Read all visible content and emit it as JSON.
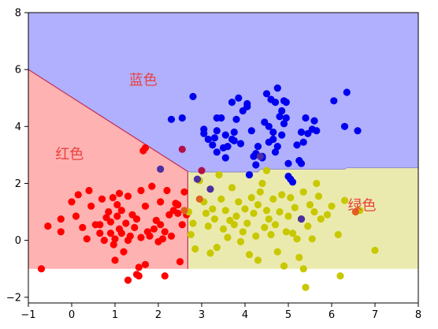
{
  "chart_data": {
    "type": "scatter",
    "title": "",
    "xlabel": "",
    "ylabel": "",
    "xlim": [
      -1,
      8
    ],
    "ylim": [
      -2.2,
      8
    ],
    "x_ticks": [
      -1,
      0,
      1,
      2,
      3,
      4,
      5,
      6,
      7,
      8
    ],
    "y_ticks": [
      -2,
      0,
      2,
      4,
      6,
      8
    ],
    "grid": false,
    "legend": "none",
    "regions": [
      {
        "name": "blue-region",
        "color": "#b0b0ff",
        "polygon": [
          [
            -1,
            8
          ],
          [
            8,
            8
          ],
          [
            8,
            2.55
          ],
          [
            6.35,
            2.55
          ],
          [
            6.3,
            2.5
          ],
          [
            4.35,
            2.5
          ],
          [
            4.3,
            2.4
          ],
          [
            2.75,
            2.4
          ],
          [
            2.68,
            2.42
          ],
          [
            -1,
            6
          ]
        ]
      },
      {
        "name": "red-region",
        "color": "#ffb2b2",
        "polygon": [
          [
            -1,
            6
          ],
          [
            2.68,
            2.42
          ],
          [
            2.68,
            -1
          ],
          [
            -1,
            -1
          ]
        ]
      },
      {
        "name": "green-region",
        "color": "#ebeaae",
        "polygon": [
          [
            2.68,
            2.42
          ],
          [
            2.75,
            2.4
          ],
          [
            4.3,
            2.4
          ],
          [
            4.35,
            2.5
          ],
          [
            6.3,
            2.5
          ],
          [
            6.35,
            2.55
          ],
          [
            8,
            2.55
          ],
          [
            8,
            -1
          ],
          [
            2.68,
            -1
          ]
        ]
      }
    ],
    "region_labels": [
      {
        "text": "蓝色",
        "x": 1.65,
        "y": 5.6
      },
      {
        "text": "红色",
        "x": -0.05,
        "y": 3.0
      },
      {
        "text": "绿色",
        "x": 6.7,
        "y": 1.2
      }
    ],
    "series": [
      {
        "name": "",
        "color": "#ff0000",
        "points": [
          [
            -0.7,
            -1.0
          ],
          [
            -0.55,
            0.5
          ],
          [
            -0.25,
            0.75
          ],
          [
            -0.25,
            0.3
          ],
          [
            0.0,
            1.35
          ],
          [
            0.1,
            0.85
          ],
          [
            0.15,
            1.6
          ],
          [
            0.25,
            0.45
          ],
          [
            0.35,
            0.05
          ],
          [
            0.4,
            1.75
          ],
          [
            0.45,
            1.2
          ],
          [
            0.55,
            0.55
          ],
          [
            0.65,
            0.25
          ],
          [
            0.7,
            1.45
          ],
          [
            0.75,
            0.0
          ],
          [
            0.8,
            0.8
          ],
          [
            0.85,
            1.0
          ],
          [
            0.9,
            0.25
          ],
          [
            0.9,
            0.65
          ],
          [
            0.95,
            1.5
          ],
          [
            0.97,
            -0.15
          ],
          [
            1.0,
            0.05
          ],
          [
            1.05,
            1.25
          ],
          [
            1.05,
            0.85
          ],
          [
            1.1,
            1.65
          ],
          [
            1.1,
            0.4
          ],
          [
            1.15,
            1.05
          ],
          [
            1.15,
            0.25
          ],
          [
            1.2,
            -0.4
          ],
          [
            1.25,
            0.6
          ],
          [
            1.3,
            1.55
          ],
          [
            1.3,
            0.0
          ],
          [
            1.35,
            0.15
          ],
          [
            1.4,
            0.9
          ],
          [
            1.45,
            0.45
          ],
          [
            1.5,
            0.75
          ],
          [
            1.5,
            -1.2
          ],
          [
            1.55,
            -1.25
          ],
          [
            1.6,
            1.75
          ],
          [
            1.6,
            0.1
          ],
          [
            1.65,
            3.15
          ],
          [
            1.7,
            3.25
          ],
          [
            1.7,
            1.2
          ],
          [
            1.75,
            0.3
          ],
          [
            1.8,
            0.15
          ],
          [
            1.85,
            1.9
          ],
          [
            1.9,
            0.4
          ],
          [
            1.95,
            0.7
          ],
          [
            2.0,
            -0.05
          ],
          [
            2.05,
            1.35
          ],
          [
            2.1,
            0.05
          ],
          [
            2.15,
            0.3
          ],
          [
            2.2,
            1.75
          ],
          [
            2.25,
            0.9
          ],
          [
            2.3,
            0.15
          ],
          [
            2.35,
            1.05
          ],
          [
            2.4,
            1.3
          ],
          [
            2.45,
            0.95
          ],
          [
            2.5,
            -0.75
          ],
          [
            2.55,
            0.55
          ],
          [
            2.6,
            1.7
          ],
          [
            2.65,
            0.9
          ],
          [
            1.0,
            -0.7
          ],
          [
            1.3,
            -1.4
          ],
          [
            1.7,
            -0.85
          ],
          [
            2.15,
            -1.25
          ],
          [
            2.45,
            1.25
          ],
          [
            1.55,
            -0.95
          ],
          [
            2.05,
            0.55
          ],
          [
            0.65,
            0.55
          ]
        ]
      },
      {
        "name": "",
        "color": "#0000ee",
        "points": [
          [
            2.3,
            4.25
          ],
          [
            2.55,
            4.3
          ],
          [
            2.8,
            5.05
          ],
          [
            3.05,
            3.9
          ],
          [
            3.15,
            3.55
          ],
          [
            3.25,
            3.35
          ],
          [
            3.3,
            3.6
          ],
          [
            3.35,
            3.85
          ],
          [
            3.35,
            4.3
          ],
          [
            3.45,
            4.3
          ],
          [
            3.5,
            3.25
          ],
          [
            3.55,
            3.7
          ],
          [
            3.6,
            3.3
          ],
          [
            3.7,
            4.85
          ],
          [
            3.75,
            3.8
          ],
          [
            3.75,
            3.5
          ],
          [
            3.8,
            4.25
          ],
          [
            3.85,
            5.0
          ],
          [
            3.9,
            3.4
          ],
          [
            3.95,
            4.55
          ],
          [
            4.05,
            4.7
          ],
          [
            4.05,
            4.8
          ],
          [
            4.1,
            2.3
          ],
          [
            4.15,
            3.85
          ],
          [
            4.2,
            2.95
          ],
          [
            4.25,
            2.65
          ],
          [
            4.3,
            3.3
          ],
          [
            4.4,
            2.9
          ],
          [
            4.45,
            4.15
          ],
          [
            4.5,
            5.15
          ],
          [
            4.55,
            4.0
          ],
          [
            4.6,
            4.95
          ],
          [
            4.65,
            3.55
          ],
          [
            4.7,
            3.1
          ],
          [
            4.7,
            4.85
          ],
          [
            4.75,
            5.35
          ],
          [
            4.8,
            4.35
          ],
          [
            4.85,
            3.7
          ],
          [
            4.85,
            4.55
          ],
          [
            4.9,
            4.1
          ],
          [
            4.9,
            4.9
          ],
          [
            4.95,
            4.3
          ],
          [
            5.0,
            2.7
          ],
          [
            5.05,
            2.15
          ],
          [
            5.1,
            2.05
          ],
          [
            5.2,
            3.35
          ],
          [
            5.25,
            2.8
          ],
          [
            5.3,
            3.8
          ],
          [
            5.35,
            3.45
          ],
          [
            5.4,
            4.3
          ],
          [
            5.45,
            3.75
          ],
          [
            5.55,
            3.9
          ],
          [
            5.6,
            4.2
          ],
          [
            5.65,
            3.85
          ],
          [
            5.3,
            2.7
          ],
          [
            6.05,
            4.9
          ],
          [
            6.3,
            4.0
          ],
          [
            6.35,
            5.2
          ],
          [
            6.6,
            3.85
          ],
          [
            4.75,
            3.3
          ],
          [
            4.95,
            4.85
          ],
          [
            3.7,
            3.55
          ],
          [
            3.35,
            3.1
          ],
          [
            4.55,
            3.45
          ],
          [
            5.0,
            2.25
          ],
          [
            4.25,
            3.05
          ],
          [
            4.4,
            2.95
          ],
          [
            3.55,
            2.9
          ],
          [
            4.65,
            3.8
          ],
          [
            3.05,
            3.75
          ]
        ]
      },
      {
        "name": "",
        "color": "#c8c800",
        "points": [
          [
            2.7,
            1.0
          ],
          [
            2.75,
            0.2
          ],
          [
            2.8,
            0.6
          ],
          [
            2.85,
            -0.3
          ],
          [
            2.95,
            2.1
          ],
          [
            3.05,
            1.35
          ],
          [
            3.1,
            0.95
          ],
          [
            3.15,
            0.5
          ],
          [
            3.2,
            -0.45
          ],
          [
            3.25,
            1.1
          ],
          [
            3.3,
            0.75
          ],
          [
            3.35,
            -0.25
          ],
          [
            3.4,
            2.3
          ],
          [
            3.45,
            1.45
          ],
          [
            3.5,
            0.4
          ],
          [
            3.55,
            1.05
          ],
          [
            3.6,
            0.1
          ],
          [
            3.65,
            0.7
          ],
          [
            3.7,
            1.85
          ],
          [
            3.75,
            0.55
          ],
          [
            3.8,
            0.85
          ],
          [
            3.85,
            1.35
          ],
          [
            3.9,
            -0.05
          ],
          [
            3.95,
            0.3
          ],
          [
            4.0,
            1.1
          ],
          [
            4.05,
            0.6
          ],
          [
            4.1,
            -0.5
          ],
          [
            4.15,
            1.5
          ],
          [
            4.2,
            0.95
          ],
          [
            4.25,
            0.15
          ],
          [
            4.3,
            -0.7
          ],
          [
            4.35,
            1.7
          ],
          [
            4.4,
            2.0
          ],
          [
            4.45,
            0.45
          ],
          [
            4.5,
            1.05
          ],
          [
            4.55,
            0.75
          ],
          [
            4.6,
            0.2
          ],
          [
            4.65,
            1.45
          ],
          [
            4.7,
            0.55
          ],
          [
            4.75,
            -0.4
          ],
          [
            4.8,
            1.0
          ],
          [
            4.85,
            1.6
          ],
          [
            4.9,
            -0.9
          ],
          [
            4.95,
            0.3
          ],
          [
            5.0,
            0.85
          ],
          [
            5.05,
            1.5
          ],
          [
            5.1,
            0.25
          ],
          [
            5.15,
            1.15
          ],
          [
            5.2,
            0.05
          ],
          [
            5.25,
            -0.6
          ],
          [
            5.3,
            0.75
          ],
          [
            5.35,
            1.7
          ],
          [
            5.4,
            -1.65
          ],
          [
            5.45,
            0.5
          ],
          [
            5.5,
            1.25
          ],
          [
            5.55,
            0.05
          ],
          [
            5.6,
            1.0
          ],
          [
            5.65,
            2.0
          ],
          [
            5.7,
            1.55
          ],
          [
            5.75,
            0.75
          ],
          [
            5.9,
            0.9
          ],
          [
            6.0,
            1.2
          ],
          [
            6.15,
            0.2
          ],
          [
            6.2,
            -1.25
          ],
          [
            6.3,
            1.4
          ],
          [
            6.65,
            1.05
          ],
          [
            7.0,
            -0.35
          ],
          [
            4.5,
            2.45
          ],
          [
            4.3,
            1.25
          ],
          [
            5.35,
            -1.0
          ]
        ]
      },
      {
        "name": "",
        "color": "#4b2fa3",
        "points": [
          [
            2.05,
            2.5
          ],
          [
            2.9,
            2.15
          ],
          [
            3.2,
            1.8
          ],
          [
            5.3,
            0.75
          ],
          [
            4.35,
            2.95
          ]
        ]
      },
      {
        "name": "",
        "color": "#b0104a",
        "points": [
          [
            2.55,
            3.2
          ],
          [
            3.0,
            2.45
          ]
        ]
      },
      {
        "name": "",
        "color": "#e06020",
        "points": [
          [
            2.6,
            1.05
          ],
          [
            2.95,
            1.45
          ],
          [
            6.55,
            1.0
          ]
        ]
      }
    ]
  }
}
